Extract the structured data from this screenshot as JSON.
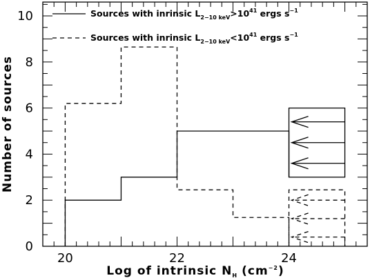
{
  "chart_data": {
    "type": "step",
    "xlabel": {
      "text": "Log of intrinsic N",
      "subscript": "H",
      "units": "(cm",
      "units_sup": "−2",
      "units_close": ")"
    },
    "ylabel": "Number of sources",
    "xlim": [
      19.6,
      25.4
    ],
    "ylim": [
      0,
      10.6
    ],
    "xticks": [
      20,
      22,
      24
    ],
    "yticks": [
      0,
      2,
      4,
      6,
      8,
      10
    ],
    "legend_placement": "top",
    "series": [
      {
        "name_parts": {
          "prefix": "Sources with inrinsic L",
          "sub": "2−10 keV",
          "rel": ">10",
          "exp": "41",
          "suffix": " ergs s",
          "suffix_exp": "−1"
        },
        "linestyle": "solid",
        "bins": [
          {
            "x0": 20,
            "x1": 21,
            "y": 2
          },
          {
            "x0": 21,
            "x1": 22,
            "y": 3
          },
          {
            "x0": 22,
            "x1": 24,
            "y": 5
          }
        ],
        "upper_limit_box": {
          "x0": 24,
          "x1": 25,
          "y0": 3,
          "y1": 6
        },
        "arrows_at_y": [
          5.4,
          4.5,
          3.6
        ]
      },
      {
        "name_parts": {
          "prefix": "Sources with inrinsic L",
          "sub": "2−10 keV",
          "rel": "<10",
          "exp": "41",
          "suffix": " ergs s",
          "suffix_exp": "−1"
        },
        "linestyle": "dashed",
        "bins": [
          {
            "x0": 20,
            "x1": 21,
            "y": 6.2
          },
          {
            "x0": 21,
            "x1": 22,
            "y": 8.65
          },
          {
            "x0": 22,
            "x1": 23,
            "y": 2.45
          },
          {
            "x0": 23,
            "x1": 24,
            "y": 1.25
          }
        ],
        "upper_limit_box": {
          "x0": 24,
          "x1": 25,
          "y0": 0,
          "y1": 2.45
        },
        "arrows_at_y": [
          2.0,
          1.2,
          0.4
        ]
      }
    ],
    "arrow_direction": "left",
    "arrow_tip_x": 24.05
  }
}
